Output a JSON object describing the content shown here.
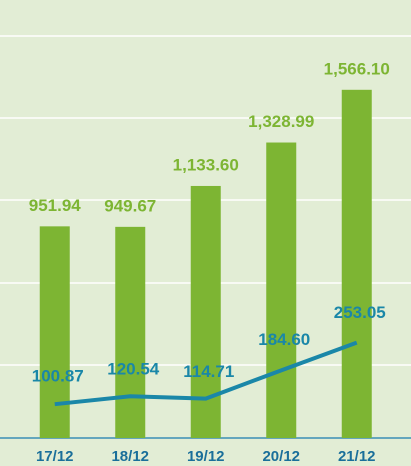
{
  "chart_data": {
    "type": "bar",
    "categories": [
      "17/12",
      "18/12",
      "19/12",
      "20/12",
      "21/12"
    ],
    "series": [
      {
        "values": [
          951.94,
          949.67,
          1133.6,
          1328.99,
          1566.1
        ],
        "value_labels": [
          "951.94",
          "949.67",
          "1,133.60",
          "1,328.99",
          "1,566.10"
        ],
        "color": "#7db533",
        "type": "bar"
      },
      {
        "values": [
          100.87,
          120.54,
          114.71,
          184.6,
          253.05
        ],
        "value_labels": [
          "100.87",
          "120.54",
          "114.71",
          "184.60",
          "253.05"
        ],
        "color": "#1a87a8",
        "type": "line",
        "axis": "y2"
      }
    ],
    "ylim": [
      0,
      1970
    ],
    "y2lim": [
      0,
      1100
    ]
  }
}
